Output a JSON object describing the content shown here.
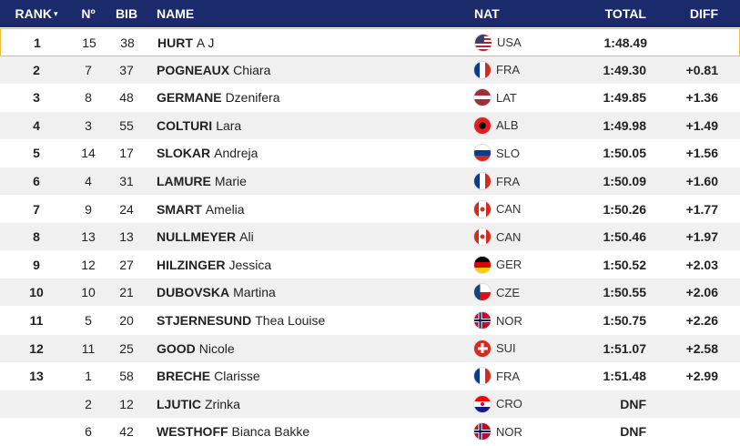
{
  "header": {
    "rank": "RANK",
    "no": "Nº",
    "bib": "BIB",
    "name": "NAME",
    "nat": "NAT",
    "total": "TOTAL",
    "diff": "DIFF"
  },
  "rows": [
    {
      "rank": 1,
      "no": 15,
      "bib": 38,
      "surname": "HURT",
      "first_name": "A J",
      "nat": "USA",
      "total": "1:48.49"
    },
    {
      "rank": 2,
      "no": 7,
      "bib": 37,
      "surname": "POGNEAUX",
      "first_name": "Chiara",
      "nat": "FRA",
      "total": "1:49.30",
      "diff": "+0.81"
    },
    {
      "rank": 3,
      "no": 8,
      "bib": 48,
      "surname": "GERMANE",
      "first_name": "Dzenifera",
      "nat": "LAT",
      "total": "1:49.85",
      "diff": "+1.36"
    },
    {
      "rank": 4,
      "no": 3,
      "bib": 55,
      "surname": "COLTURI",
      "first_name": "Lara",
      "nat": "ALB",
      "total": "1:49.98",
      "diff": "+1.49"
    },
    {
      "rank": 5,
      "no": 14,
      "bib": 17,
      "surname": "SLOKAR",
      "first_name": "Andreja",
      "nat": "SLO",
      "total": "1:50.05",
      "diff": "+1.56"
    },
    {
      "rank": 6,
      "no": 4,
      "bib": 31,
      "surname": "LAMURE",
      "first_name": "Marie",
      "nat": "FRA",
      "total": "1:50.09",
      "diff": "+1.60"
    },
    {
      "rank": 7,
      "no": 9,
      "bib": 24,
      "surname": "SMART",
      "first_name": "Amelia",
      "nat": "CAN",
      "total": "1:50.26",
      "diff": "+1.77"
    },
    {
      "rank": 8,
      "no": 13,
      "bib": 13,
      "surname": "NULLMEYER",
      "first_name": "Ali",
      "nat": "CAN",
      "total": "1:50.46",
      "diff": "+1.97"
    },
    {
      "rank": 9,
      "no": 12,
      "bib": 27,
      "surname": "HILZINGER",
      "first_name": "Jessica",
      "nat": "GER",
      "total": "1:50.52",
      "diff": "+2.03"
    },
    {
      "rank": 10,
      "no": 10,
      "bib": 21,
      "surname": "DUBOVSKA",
      "first_name": "Martina",
      "nat": "CZE",
      "total": "1:50.55",
      "diff": "+2.06"
    },
    {
      "rank": 11,
      "no": 5,
      "bib": 20,
      "surname": "STJERNESUND",
      "first_name": "Thea Louise",
      "nat": "NOR",
      "total": "1:50.75",
      "diff": "+2.26"
    },
    {
      "rank": 12,
      "no": 11,
      "bib": 25,
      "surname": "GOOD",
      "first_name": "Nicole",
      "nat": "SUI",
      "total": "1:51.07",
      "diff": "+2.58"
    },
    {
      "rank": 13,
      "no": 1,
      "bib": 58,
      "surname": "BRECHE",
      "first_name": "Clarisse",
      "nat": "FRA",
      "total": "1:51.48",
      "diff": "+2.99"
    },
    {
      "no": 2,
      "bib": 12,
      "surname": "LJUTIC",
      "first_name": "Zrinka",
      "nat": "CRO",
      "total": "DNF"
    },
    {
      "no": 6,
      "bib": 42,
      "surname": "WESTHOFF",
      "first_name": "Bianca Bakke",
      "nat": "NOR",
      "total": "DNF"
    }
  ]
}
